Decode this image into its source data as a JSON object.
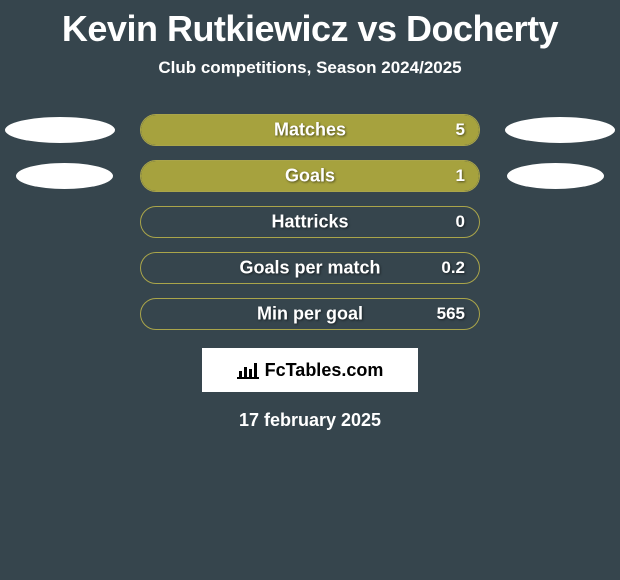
{
  "title": "Kevin Rutkiewicz vs Docherty",
  "subtitle": "Club competitions, Season 2024/2025",
  "bar_border_color": "#aaa54a",
  "bar_fill_color": "#a6a23e",
  "bar_fill_color_alt": "#b2ae4a",
  "background_color": "#36454d",
  "rows": [
    {
      "label": "Matches",
      "value": "5",
      "fill_pct": 100
    },
    {
      "label": "Goals",
      "value": "1",
      "fill_pct": 100
    },
    {
      "label": "Hattricks",
      "value": "0",
      "fill_pct": 0
    },
    {
      "label": "Goals per match",
      "value": "0.2",
      "fill_pct": 0
    },
    {
      "label": "Min per goal",
      "value": "565",
      "fill_pct": 0
    }
  ],
  "brand": "FcTables.com",
  "date": "17 february 2025"
}
